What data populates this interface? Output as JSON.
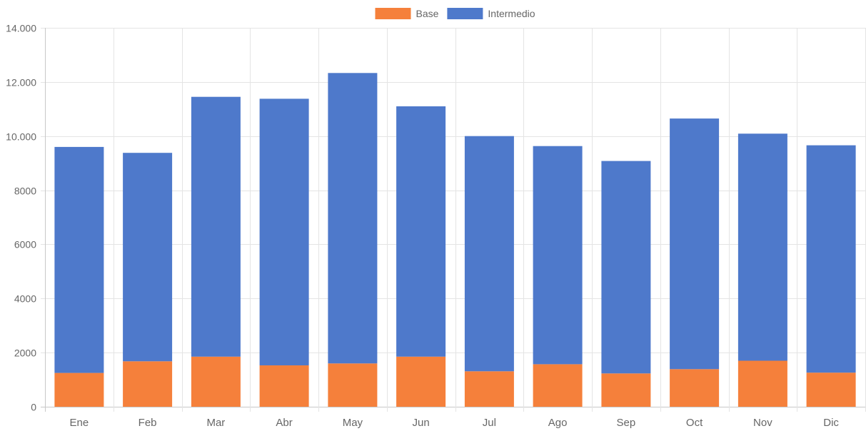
{
  "chart_data": {
    "type": "bar",
    "stacked": true,
    "categories": [
      "Ene",
      "Feb",
      "Mar",
      "Abr",
      "May",
      "Jun",
      "Jul",
      "Ago",
      "Sep",
      "Oct",
      "Nov",
      "Dic"
    ],
    "series": [
      {
        "name": "Base",
        "color": "#f5803b",
        "values": [
          1250,
          1680,
          1850,
          1530,
          1600,
          1850,
          1310,
          1570,
          1230,
          1390,
          1700,
          1260
        ]
      },
      {
        "name": "Intermedio",
        "color": "#4e79cb",
        "values": [
          8350,
          7700,
          9600,
          9850,
          10730,
          9250,
          8690,
          8060,
          7850,
          9260,
          8390,
          8400
        ]
      }
    ],
    "ylim": [
      0,
      14000
    ],
    "yticks": [
      0,
      2000,
      4000,
      6000,
      8000,
      10000,
      12000,
      14000
    ],
    "ytick_labels": [
      "0",
      "2000",
      "4000",
      "6000",
      "8000",
      "10.000",
      "12.000",
      "14.000"
    ],
    "grid": true,
    "legend_position": "top-center",
    "title": "",
    "xlabel": "",
    "ylabel": ""
  }
}
